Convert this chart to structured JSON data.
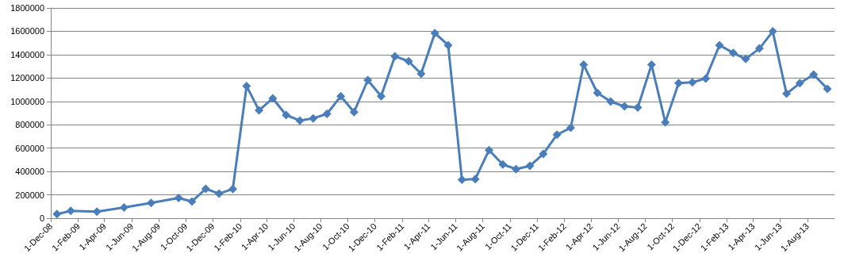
{
  "chart_data": {
    "type": "line",
    "marker": "diamond",
    "line_style": "solid",
    "grid": "y",
    "x": [
      "2008-12-15",
      "2009-01-15",
      "2009-03-15",
      "2009-05-15",
      "2009-07-15",
      "2009-09-15",
      "2009-10-15",
      "2009-11-15",
      "2009-12-15",
      "2010-01-15",
      "2010-02-15",
      "2010-03-15",
      "2010-04-15",
      "2010-05-15",
      "2010-06-15",
      "2010-07-15",
      "2010-08-15",
      "2010-09-15",
      "2010-10-15",
      "2010-11-15",
      "2010-12-15",
      "2011-01-15",
      "2011-02-15",
      "2011-03-15",
      "2011-04-15",
      "2011-05-15",
      "2011-06-15",
      "2011-07-15",
      "2011-08-15",
      "2011-09-15",
      "2011-10-15",
      "2011-11-15",
      "2011-12-15",
      "2012-01-15",
      "2012-02-15",
      "2012-03-15",
      "2012-04-15",
      "2012-05-15",
      "2012-06-15",
      "2012-07-15",
      "2012-08-15",
      "2012-09-15",
      "2012-10-15",
      "2012-11-15",
      "2012-12-15",
      "2013-01-15",
      "2013-02-15",
      "2013-03-15",
      "2013-04-15",
      "2013-05-15",
      "2013-06-15",
      "2013-07-15",
      "2013-08-15",
      "2013-09-15"
    ],
    "series": [
      {
        "color": "#4a7ebb",
        "values": [
          35000,
          63000,
          56000,
          91000,
          131000,
          173000,
          143000,
          252000,
          210000,
          250000,
          1131000,
          923000,
          1026000,
          883000,
          836000,
          855000,
          893000,
          1044000,
          909000,
          1182000,
          1044000,
          1386000,
          1343000,
          1236000,
          1585000,
          1481000,
          330000,
          335000,
          583000,
          460000,
          420000,
          448000,
          550000,
          715000,
          774000,
          1314000,
          1073000,
          998000,
          958000,
          948000,
          1314000,
          821000,
          1156000,
          1163000,
          1196000,
          1481000,
          1415000,
          1363000,
          1453000,
          1599000,
          1066000,
          1156000,
          1229000,
          1108000
        ]
      }
    ],
    "xlim": [
      "2008-12-01",
      "2013-10-01"
    ],
    "xticks": [
      {
        "value": "2008-12-01",
        "label": "1-Dec-08"
      },
      {
        "value": "2009-02-01",
        "label": "1-Feb-09"
      },
      {
        "value": "2009-04-01",
        "label": "1-Apr-09"
      },
      {
        "value": "2009-06-01",
        "label": "1-Jun-09"
      },
      {
        "value": "2009-08-01",
        "label": "1-Aug-09"
      },
      {
        "value": "2009-10-01",
        "label": "1-Oct-09"
      },
      {
        "value": "2009-12-01",
        "label": "1-Dec-09"
      },
      {
        "value": "2010-02-01",
        "label": "1-Feb-10"
      },
      {
        "value": "2010-04-01",
        "label": "1-Apr-10"
      },
      {
        "value": "2010-06-01",
        "label": "1-Jun-10"
      },
      {
        "value": "2010-08-01",
        "label": "1-Aug-10"
      },
      {
        "value": "2010-10-01",
        "label": "1-Oct-10"
      },
      {
        "value": "2010-12-01",
        "label": "1-Dec-10"
      },
      {
        "value": "2011-02-01",
        "label": "1-Feb-11"
      },
      {
        "value": "2011-04-01",
        "label": "1-Apr-11"
      },
      {
        "value": "2011-06-01",
        "label": "1-Jun-11"
      },
      {
        "value": "2011-08-01",
        "label": "1-Aug-11"
      },
      {
        "value": "2011-10-01",
        "label": "1-Oct-11"
      },
      {
        "value": "2011-12-01",
        "label": "1-Dec-11"
      },
      {
        "value": "2012-02-01",
        "label": "1-Feb-12"
      },
      {
        "value": "2012-04-01",
        "label": "1-Apr-12"
      },
      {
        "value": "2012-06-01",
        "label": "1-Jun-12"
      },
      {
        "value": "2012-08-01",
        "label": "1-Aug-12"
      },
      {
        "value": "2012-10-01",
        "label": "1-Oct-12"
      },
      {
        "value": "2012-12-01",
        "label": "1-Dec-12"
      },
      {
        "value": "2013-02-01",
        "label": "1-Feb-13"
      },
      {
        "value": "2013-04-01",
        "label": "1-Apr-13"
      },
      {
        "value": "2013-06-01",
        "label": "1-Jun-13"
      },
      {
        "value": "2013-08-01",
        "label": "1-Aug-13"
      }
    ],
    "ylim": [
      0,
      1800000
    ],
    "yticks": [
      0,
      200000,
      400000,
      600000,
      800000,
      1000000,
      1200000,
      1400000,
      1600000,
      1800000
    ]
  }
}
